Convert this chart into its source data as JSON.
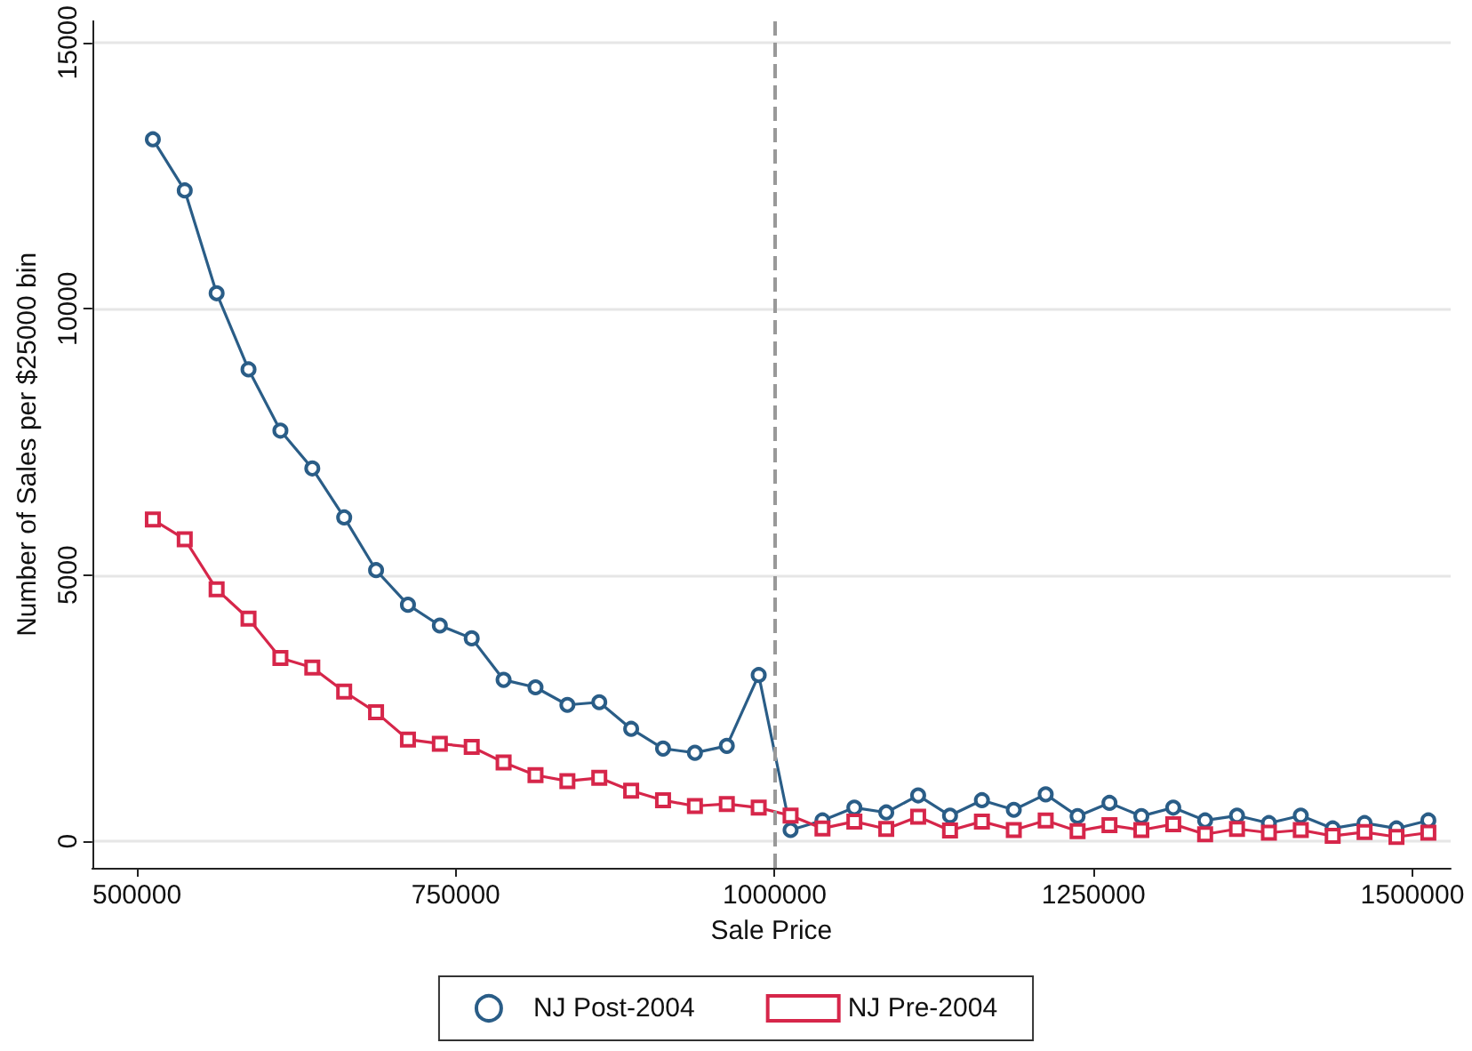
{
  "chart_data": {
    "type": "line",
    "xlabel": "Sale Price",
    "ylabel": "Number of Sales per $25000 bin",
    "x": [
      512500,
      537500,
      562500,
      587500,
      612500,
      637500,
      662500,
      687500,
      712500,
      737500,
      762500,
      787500,
      812500,
      837500,
      862500,
      887500,
      912500,
      937500,
      962500,
      987500,
      1012500,
      1037500,
      1062500,
      1087500,
      1112500,
      1137500,
      1162500,
      1187500,
      1212500,
      1237500,
      1262500,
      1287500,
      1312500,
      1337500,
      1362500,
      1387500,
      1412500,
      1437500,
      1462500,
      1487500,
      1512500
    ],
    "series": [
      {
        "name": "NJ Post-2004",
        "color": "#2a5d87",
        "marker": "circle",
        "values": [
          13180,
          12220,
          10290,
          8860,
          7710,
          7000,
          6080,
          5090,
          4440,
          4050,
          3810,
          3030,
          2890,
          2560,
          2610,
          2110,
          1740,
          1660,
          1790,
          3120,
          210,
          390,
          630,
          540,
          860,
          480,
          770,
          590,
          880,
          470,
          720,
          470,
          630,
          390,
          480,
          340,
          480,
          240,
          340,
          240,
          390
        ]
      },
      {
        "name": "NJ Pre-2004",
        "color": "#d6264a",
        "marker": "square",
        "values": [
          6040,
          5670,
          4730,
          4180,
          3440,
          3260,
          2810,
          2420,
          1910,
          1830,
          1770,
          1480,
          1240,
          1130,
          1190,
          950,
          770,
          660,
          700,
          630,
          480,
          240,
          370,
          230,
          460,
          200,
          370,
          210,
          390,
          190,
          300,
          210,
          320,
          130,
          230,
          160,
          210,
          100,
          170,
          80,
          160
        ]
      }
    ],
    "xlim": [
      465000,
      1530000
    ],
    "xticks": [
      500000,
      750000,
      1000000,
      1250000,
      1500000
    ],
    "ylim": [
      -500,
      15400
    ],
    "yticks": [
      0,
      5000,
      10000,
      15000
    ],
    "grid": "y",
    "legend": "bottom",
    "line_style": "solid",
    "ref_lines": [
      {
        "axis": "x",
        "value": 1000000,
        "color": "#999999",
        "line_style": "dashed"
      }
    ]
  }
}
